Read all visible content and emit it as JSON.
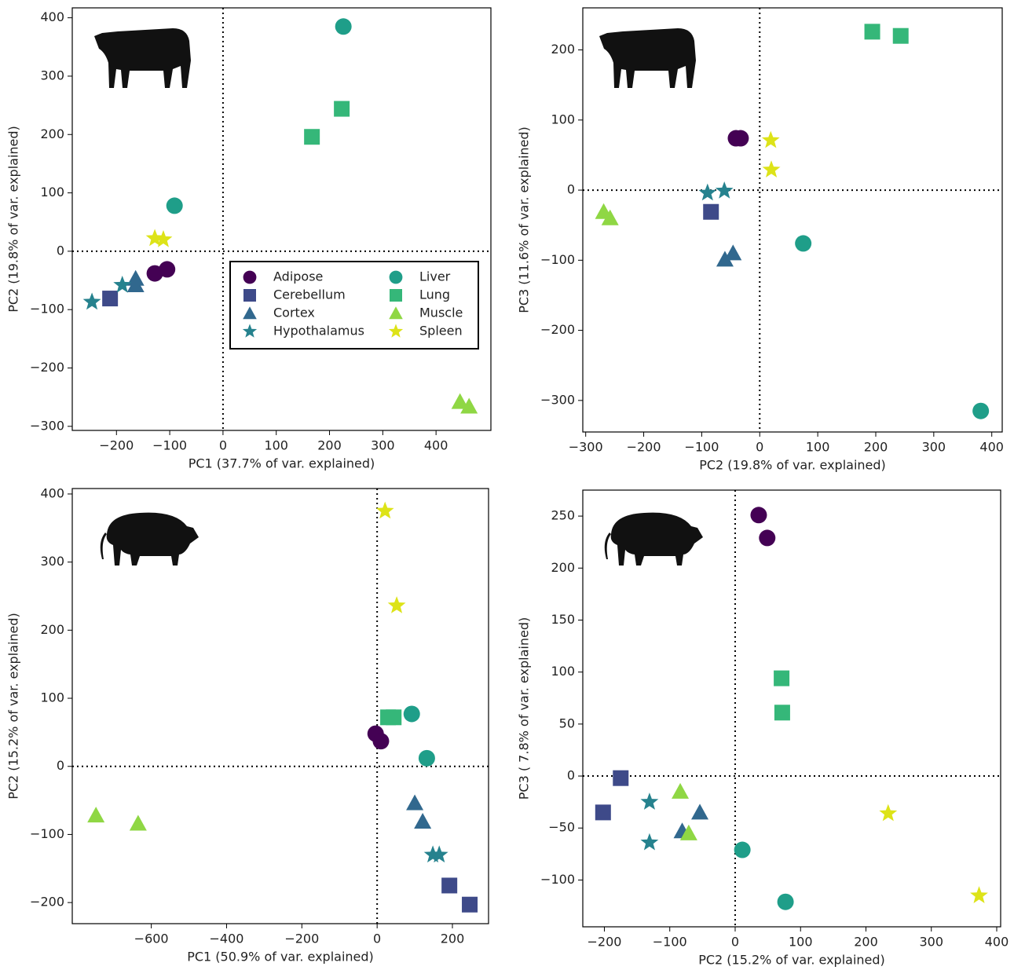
{
  "chart_data": [
    {
      "type": "scatter",
      "xlabel": "PC1 (37.7% of var. explained)",
      "ylabel": "PC2 (19.8% of var. explained)",
      "xlim": [
        -283,
        503
      ],
      "ylim": [
        -307,
        417
      ],
      "xticks": [
        {
          "value": -200,
          "label": "−200"
        },
        {
          "value": -100,
          "label": "−100"
        },
        0,
        100,
        200,
        300,
        400
      ],
      "yticks": [
        {
          "value": -300,
          "label": "−300"
        },
        {
          "value": -200,
          "label": "−200"
        },
        {
          "value": -100,
          "label": "−100"
        },
        0,
        100,
        200,
        300,
        400
      ],
      "zero_lines": true,
      "legend": "center",
      "series": [
        {
          "name": "Adipose",
          "color": "#440154",
          "marker": "o",
          "x": [
            -128,
            -105
          ],
          "y": [
            -38,
            -31
          ]
        },
        {
          "name": "Cerebellum",
          "color": "#3e4a89",
          "marker": "s",
          "x": [
            -212
          ],
          "y": [
            -81
          ]
        },
        {
          "name": "Cortex",
          "color": "#31688e",
          "marker": "^",
          "x": [
            -164,
            -164
          ],
          "y": [
            -47,
            -58
          ]
        },
        {
          "name": "Hypothalamus",
          "color": "#26828e",
          "marker": "*",
          "x": [
            -246,
            -189
          ],
          "y": [
            -87,
            -58
          ]
        },
        {
          "name": "Liver",
          "color": "#1f9e89",
          "marker": "o",
          "x": [
            -91,
            226
          ],
          "y": [
            78,
            385
          ]
        },
        {
          "name": "Lung",
          "color": "#35b779",
          "marker": "s",
          "x": [
            167,
            223
          ],
          "y": [
            196,
            244
          ]
        },
        {
          "name": "Muscle",
          "color": "#8fd744",
          "marker": "^",
          "x": [
            445,
            462
          ],
          "y": [
            -258,
            -266
          ]
        },
        {
          "name": "Spleen",
          "color": "#dde318",
          "marker": "*",
          "x": [
            -128,
            -112
          ],
          "y": [
            22,
            20
          ]
        }
      ]
    },
    {
      "type": "scatter",
      "xlabel": "PC2 (19.8% of var. explained)",
      "ylabel": "PC3 (11.6% of var. explained)",
      "xlim": [
        -305,
        418
      ],
      "ylim": [
        -345,
        260
      ],
      "xticks": [
        {
          "value": -300,
          "label": "−300"
        },
        {
          "value": -200,
          "label": "−200"
        },
        {
          "value": -100,
          "label": "−100"
        },
        0,
        100,
        200,
        300,
        400
      ],
      "yticks": [
        {
          "value": -300,
          "label": "−300"
        },
        {
          "value": -200,
          "label": "−200"
        },
        {
          "value": -100,
          "label": "−100"
        },
        0,
        100,
        200
      ],
      "zero_lines": true,
      "series": [
        {
          "color": "#440154",
          "marker": "o",
          "x": [
            -41,
            -33
          ],
          "y": [
            74,
            74
          ]
        },
        {
          "color": "#3e4a89",
          "marker": "s",
          "x": [
            -84
          ],
          "y": [
            -31
          ]
        },
        {
          "color": "#31688e",
          "marker": "^",
          "x": [
            -60,
            -46
          ],
          "y": [
            -99,
            -90
          ]
        },
        {
          "color": "#26828e",
          "marker": "*",
          "x": [
            -90,
            -61
          ],
          "y": [
            -4,
            -1
          ]
        },
        {
          "color": "#1f9e89",
          "marker": "o",
          "x": [
            75,
            381
          ],
          "y": [
            -76,
            -315
          ]
        },
        {
          "color": "#35b779",
          "marker": "s",
          "x": [
            194,
            243
          ],
          "y": [
            226,
            220
          ]
        },
        {
          "color": "#8fd744",
          "marker": "^",
          "x": [
            -269,
            -258
          ],
          "y": [
            -31,
            -40
          ]
        },
        {
          "color": "#dde318",
          "marker": "*",
          "x": [
            19,
            20
          ],
          "y": [
            71,
            29
          ]
        }
      ]
    },
    {
      "type": "scatter",
      "xlabel": "PC1 (50.9% of var. explained)",
      "ylabel": "PC2 (15.2% of var. explained)",
      "xlim": [
        -810,
        296
      ],
      "ylim": [
        -231,
        408
      ],
      "xticks": [
        {
          "value": -600,
          "label": "−600"
        },
        {
          "value": -400,
          "label": "−400"
        },
        {
          "value": -200,
          "label": "−200"
        },
        0,
        200
      ],
      "yticks": [
        {
          "value": -200,
          "label": "−200"
        },
        {
          "value": -100,
          "label": "−100"
        },
        0,
        100,
        200,
        300,
        400
      ],
      "zero_lines": true,
      "series": [
        {
          "color": "#440154",
          "marker": "o",
          "x": [
            -4,
            10
          ],
          "y": [
            48,
            37
          ]
        },
        {
          "color": "#3e4a89",
          "marker": "s",
          "x": [
            192,
            246
          ],
          "y": [
            -175,
            -203
          ]
        },
        {
          "color": "#31688e",
          "marker": "^",
          "x": [
            100,
            121
          ],
          "y": [
            -54,
            -81
          ]
        },
        {
          "color": "#26828e",
          "marker": "*",
          "x": [
            148,
            165
          ],
          "y": [
            -130,
            -130
          ]
        },
        {
          "color": "#1f9e89",
          "marker": "o",
          "x": [
            92,
            132
          ],
          "y": [
            77,
            12
          ]
        },
        {
          "color": "#35b779",
          "marker": "s",
          "x": [
            29,
            44
          ],
          "y": [
            72,
            72
          ]
        },
        {
          "color": "#8fd744",
          "marker": "^",
          "x": [
            -747,
            -635
          ],
          "y": [
            -72,
            -84
          ]
        },
        {
          "color": "#dde318",
          "marker": "*",
          "x": [
            21,
            52
          ],
          "y": [
            375,
            236
          ]
        }
      ]
    },
    {
      "type": "scatter",
      "xlabel": "PC2 (15.2% of var. explained)",
      "ylabel": "PC3 ( 7.8% of var. explained)",
      "xlim": [
        -233,
        406
      ],
      "ylim": [
        -145,
        275
      ],
      "xticks": [
        {
          "value": -200,
          "label": "−200"
        },
        {
          "value": -100,
          "label": "−100"
        },
        0,
        100,
        200,
        300,
        400
      ],
      "yticks": [
        {
          "value": -100,
          "label": "−100"
        },
        {
          "value": -50,
          "label": "−50"
        },
        0,
        50,
        100,
        150,
        200,
        250
      ],
      "zero_lines": true,
      "series": [
        {
          "color": "#440154",
          "marker": "o",
          "x": [
            36,
            49
          ],
          "y": [
            251,
            229
          ]
        },
        {
          "color": "#3e4a89",
          "marker": "s",
          "x": [
            -202,
            -175
          ],
          "y": [
            -35,
            -2
          ]
        },
        {
          "color": "#31688e",
          "marker": "^",
          "x": [
            -81,
            -54
          ],
          "y": [
            -53,
            -35
          ]
        },
        {
          "color": "#26828e",
          "marker": "*",
          "x": [
            -131,
            -131
          ],
          "y": [
            -25,
            -64
          ]
        },
        {
          "color": "#1f9e89",
          "marker": "o",
          "x": [
            11,
            77
          ],
          "y": [
            -71,
            -121
          ]
        },
        {
          "color": "#35b779",
          "marker": "s",
          "x": [
            71,
            72
          ],
          "y": [
            94,
            61
          ]
        },
        {
          "color": "#8fd744",
          "marker": "^",
          "x": [
            -84,
            -71
          ],
          "y": [
            -15,
            -55
          ]
        },
        {
          "color": "#dde318",
          "marker": "*",
          "x": [
            234,
            373
          ],
          "y": [
            -36,
            -115
          ]
        }
      ]
    }
  ]
}
